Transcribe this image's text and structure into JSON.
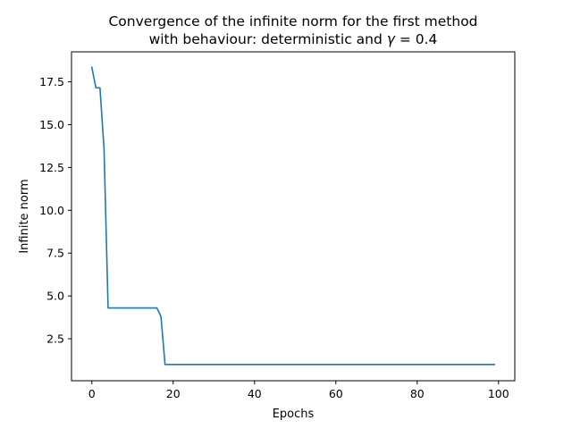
{
  "chart_data": {
    "type": "line",
    "title_line1": "Convergence of the infinite norm for the first method",
    "title_line2_prefix": "with behaviour: deterministic and ",
    "title_gamma_symbol": "γ",
    "title_gamma_value": " = 0.4",
    "xlabel": "Epochs",
    "ylabel": "Infinite norm",
    "xlim": [
      -5,
      104
    ],
    "ylim": [
      0.05,
      19.25
    ],
    "x_ticks": [
      0,
      20,
      40,
      60,
      80,
      100
    ],
    "x_tick_labels": [
      "0",
      "20",
      "40",
      "60",
      "80",
      "100"
    ],
    "y_ticks": [
      2.5,
      5.0,
      7.5,
      10.0,
      12.5,
      15.0,
      17.5
    ],
    "y_tick_labels": [
      "2.5",
      "5.0",
      "7.5",
      "10.0",
      "12.5",
      "15.0",
      "17.5"
    ],
    "grid": false,
    "series_color": "#1f77b4",
    "series": [
      {
        "x": [
          0,
          1,
          2,
          3,
          4,
          5,
          6,
          7,
          8,
          9,
          10,
          11,
          12,
          13,
          14,
          15,
          16,
          17,
          18,
          19,
          20,
          30,
          40,
          50,
          60,
          70,
          80,
          90,
          99
        ],
        "values": [
          18.35,
          17.15,
          17.15,
          13.6,
          4.3,
          4.3,
          4.3,
          4.3,
          4.3,
          4.3,
          4.3,
          4.3,
          4.3,
          4.3,
          4.3,
          4.3,
          4.3,
          3.8,
          1.0,
          1.0,
          1.0,
          1.0,
          1.0,
          1.0,
          1.0,
          1.0,
          1.0,
          1.0,
          1.0
        ]
      }
    ]
  }
}
